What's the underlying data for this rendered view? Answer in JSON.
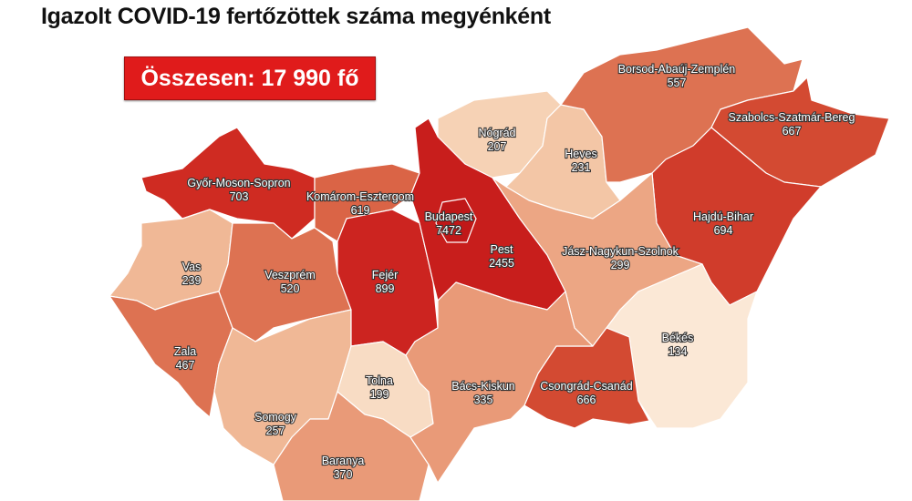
{
  "title": "Igazolt COVID-19 fertőzöttek száma megyénként",
  "total_label": "Összesen: 17 990 fő",
  "colors": {
    "total_box": "#e01b1b"
  },
  "counties": [
    {
      "name": "Győr-Moson-Sopron",
      "value": "703",
      "color": "#cf2b22"
    },
    {
      "name": "Vas",
      "value": "239",
      "color": "#f0b896"
    },
    {
      "name": "Zala",
      "value": "467",
      "color": "#dd7252"
    },
    {
      "name": "Veszprém",
      "value": "520",
      "color": "#dd7252"
    },
    {
      "name": "Somogy",
      "value": "257",
      "color": "#f0b896"
    },
    {
      "name": "Komárom-Esztergom",
      "value": "619",
      "color": "#da6446"
    },
    {
      "name": "Fejér",
      "value": "899",
      "color": "#cc2420"
    },
    {
      "name": "Tolna",
      "value": "199",
      "color": "#f8dcc4"
    },
    {
      "name": "Baranya",
      "value": "370",
      "color": "#e99a78"
    },
    {
      "name": "Pest",
      "value": "2455",
      "color": "#c81e1c"
    },
    {
      "name": "Budapest",
      "value": "7472",
      "color": "#c01818"
    },
    {
      "name": "Nógrád",
      "value": "207",
      "color": "#f6d2b5"
    },
    {
      "name": "Heves",
      "value": "231",
      "color": "#f3c6a6"
    },
    {
      "name": "Borsod-Abaúj-Zemplén",
      "value": "557",
      "color": "#dd7252"
    },
    {
      "name": "Szabolcs-Szatmár-Bereg",
      "value": "667",
      "color": "#d34a32"
    },
    {
      "name": "Hajdú-Bihar",
      "value": "694",
      "color": "#d03c2b"
    },
    {
      "name": "Jász-Nagykun-Szolnok",
      "value": "299",
      "color": "#eca684"
    },
    {
      "name": "Békés",
      "value": "134",
      "color": "#fbe8d6"
    },
    {
      "name": "Csongrád-Csanád",
      "value": "666",
      "color": "#d34a32"
    },
    {
      "name": "Bács-Kiskun",
      "value": "335",
      "color": "#e99a78"
    }
  ]
}
